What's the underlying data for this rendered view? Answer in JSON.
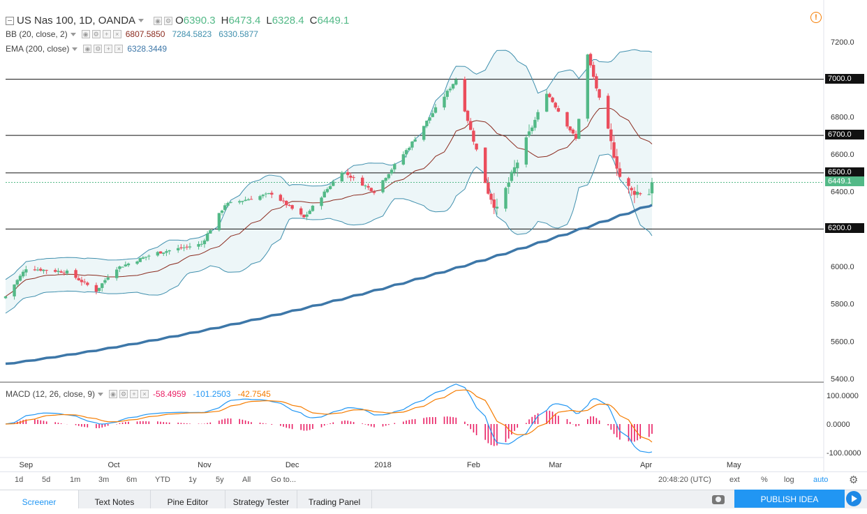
{
  "header": {
    "symbol": "US Nas 100, 1D, OANDA",
    "o_label": "O",
    "o_value": "6390.3",
    "h_label": "H",
    "h_value": "6473.4",
    "l_label": "L",
    "l_value": "6328.4",
    "c_label": "C",
    "c_value": "6449.1"
  },
  "indicators": {
    "bb": {
      "label": "BB (20, close, 2)",
      "basis": "6807.5850",
      "upper": "7284.5823",
      "lower": "6330.5877"
    },
    "ema": {
      "label": "EMA (200, close)",
      "value": "6328.3449"
    },
    "macd": {
      "label": "MACD (12, 26, close, 9)",
      "hist": "-58.4959",
      "macd": "-101.2503",
      "signal": "-42.7545"
    }
  },
  "colors": {
    "up": "#53b987",
    "down": "#eb4d5c",
    "bb_band": "#3f8fad",
    "bb_basis": "#8b2b1f",
    "ema": "#3d77a8",
    "macd_line": "#2196f3",
    "signal_line": "#f57c00",
    "hist": "#e91e63",
    "current_price": "#53b987"
  },
  "price_axis": [
    "7200.0",
    "7000.0",
    "6800.0",
    "6600.0",
    "6400.0",
    "6200.0",
    "6000.0",
    "5800.0",
    "5600.0",
    "5400.0"
  ],
  "levels": [
    {
      "label": "7000.0",
      "value": 7000
    },
    {
      "label": "6700.0",
      "value": 6700
    },
    {
      "label": "6500.0",
      "value": 6500
    },
    {
      "label": "6200.0",
      "value": 6200
    }
  ],
  "current_price": {
    "label": "6449.1",
    "value": 6449.1
  },
  "macd_axis": [
    "100.0000",
    "0.0000",
    "-100.0000"
  ],
  "time_axis": [
    "Sep",
    "Oct",
    "Nov",
    "Dec",
    "2018",
    "Feb",
    "Mar",
    "Apr",
    "May"
  ],
  "toolbar": {
    "ranges": [
      "1d",
      "5d",
      "1m",
      "3m",
      "6m",
      "YTD",
      "1y",
      "5y",
      "All"
    ],
    "goto": "Go to...",
    "clock": "20:48:20 (UTC)",
    "ext": "ext",
    "pct": "%",
    "log": "log",
    "auto": "auto"
  },
  "tabs": [
    "Screener",
    "Text Notes",
    "Pine Editor",
    "Strategy Tester",
    "Trading Panel"
  ],
  "publish": "PUBLISH IDEA",
  "icons": [
    "collapse-icon",
    "settings-icon",
    "alert-icon",
    "camera-icon",
    "play-icon",
    "gear-icon"
  ],
  "chart_data": {
    "type": "candlestick",
    "title": "US Nas 100, 1D, OANDA",
    "ylim": [
      5400,
      7300
    ],
    "x_ticks": [
      "Sep",
      "Oct",
      "Nov",
      "Dec",
      "2018",
      "Feb",
      "Mar",
      "Apr",
      "May"
    ],
    "keypoints": [
      {
        "t": "Aug 25",
        "close": 5840
      },
      {
        "t": "Sep 1",
        "close": 5990
      },
      {
        "t": "Sep 15",
        "close": 5970
      },
      {
        "t": "Sep 25",
        "close": 5870
      },
      {
        "t": "Oct 1",
        "close": 5985
      },
      {
        "t": "Oct 15",
        "close": 6070
      },
      {
        "t": "Oct 31",
        "close": 6120
      },
      {
        "t": "Nov 8",
        "close": 6330
      },
      {
        "t": "Nov 24",
        "close": 6390
      },
      {
        "t": "Dec 5",
        "close": 6260
      },
      {
        "t": "Dec 18",
        "close": 6510
      },
      {
        "t": "Dec 29",
        "close": 6400
      },
      {
        "t": "Jan 10",
        "close": 6640
      },
      {
        "t": "Jan 26",
        "close": 7000
      },
      {
        "t": "Feb 6",
        "close": 6400
      },
      {
        "t": "Feb 9",
        "close": 6300
      },
      {
        "t": "Feb 26",
        "close": 6930
      },
      {
        "t": "Mar 8",
        "close": 6680
      },
      {
        "t": "Mar 12",
        "close": 7130
      },
      {
        "t": "Mar 23",
        "close": 6480
      },
      {
        "t": "Mar 27",
        "close": 6400
      },
      {
        "t": "Apr 2",
        "close": 6390
      },
      {
        "t": "Apr 3",
        "close": 6449.1
      }
    ],
    "ema200": {
      "start": 5480,
      "end": 6328.3
    },
    "macd_ylim": [
      -100,
      100
    ]
  }
}
